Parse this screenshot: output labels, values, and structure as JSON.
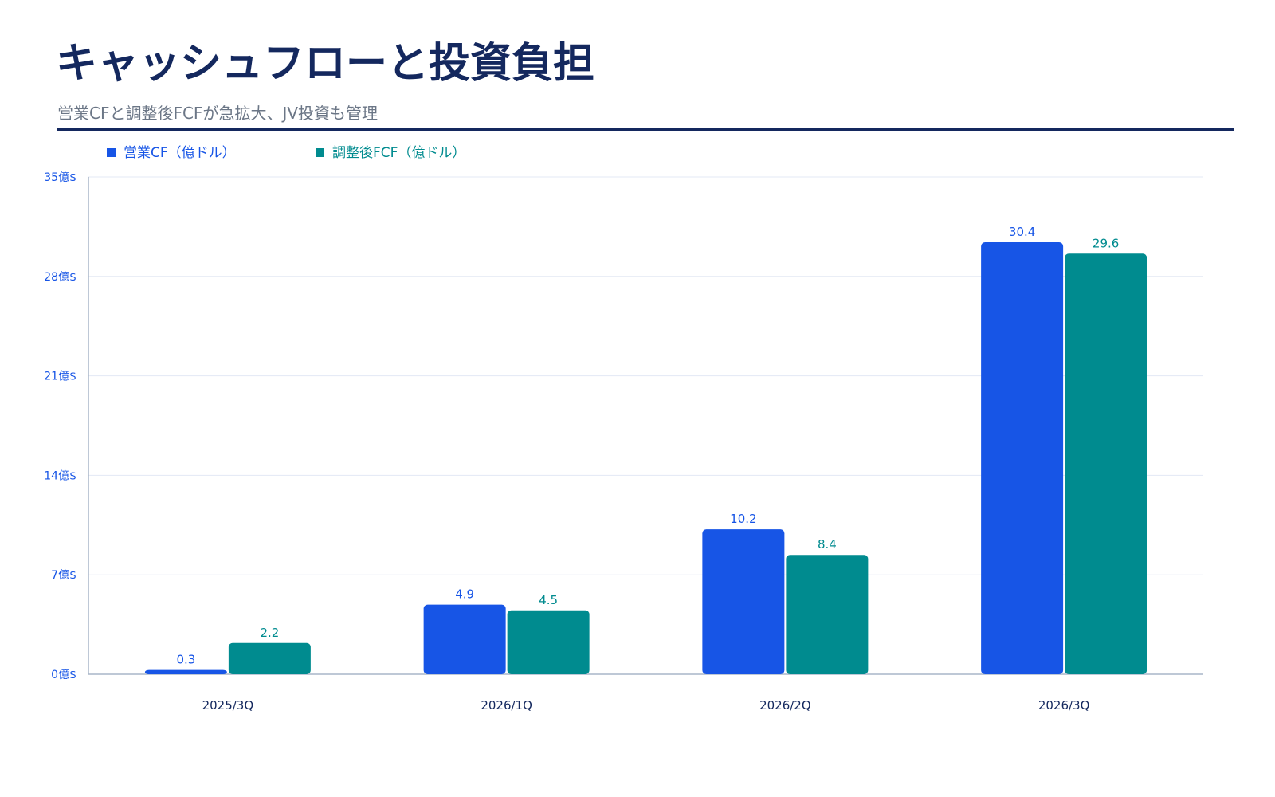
{
  "header": {
    "title": "キャッシュフローと投資負担",
    "subtitle": "営業CFと調整後FCFが急拡大、JV投資も管理"
  },
  "colors": {
    "title": "#14285e",
    "operating_cf": "#1755e6",
    "adjusted_fcf": "#008b8f",
    "y_axis_labels": "#1755e6",
    "x_axis_labels": "#14285e",
    "grid": "#e3e8f4",
    "axis": "#a9b6c8"
  },
  "chart_data": {
    "type": "bar",
    "categories": [
      "2025/3Q",
      "2026/1Q",
      "2026/2Q",
      "2026/3Q"
    ],
    "series": [
      {
        "name": "営業CF（億ドル）",
        "values": [
          0.3,
          4.9,
          10.2,
          30.4
        ],
        "color": "#1755e6"
      },
      {
        "name": "調整後FCF（億ドル）",
        "values": [
          2.2,
          4.5,
          8.4,
          29.6
        ],
        "color": "#008b8f"
      }
    ],
    "y_ticks": [
      0,
      7,
      14,
      21,
      28,
      35
    ],
    "y_tick_suffix": "億$",
    "ylim": [
      0,
      35
    ],
    "grid": true,
    "legend_position": "top-left",
    "data_labels": true
  }
}
